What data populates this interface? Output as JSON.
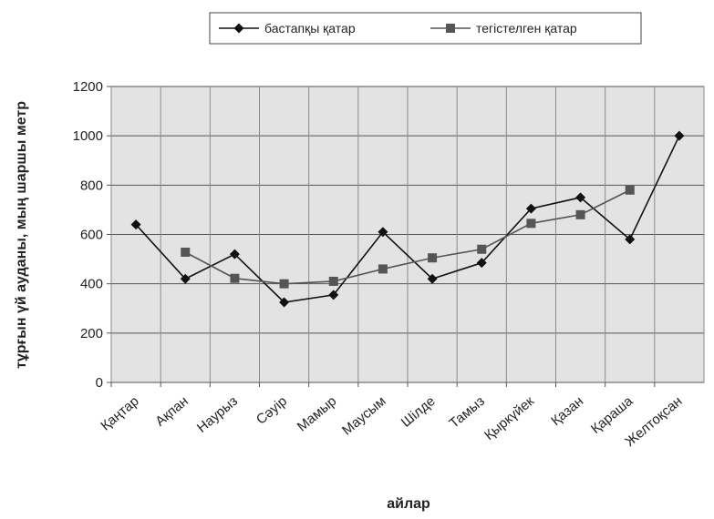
{
  "chart_data": {
    "type": "line",
    "categories": [
      "Қаңтар",
      "Ақпан",
      "Наурыз",
      "Сәуір",
      "Мамыр",
      "Маусым",
      "Шілде",
      "Тамыз",
      "Қыркүйек",
      "Қазан",
      "Қараша",
      "Желтоқсан"
    ],
    "series": [
      {
        "name": "бастапқы қатар",
        "values": [
          640,
          420,
          520,
          325,
          355,
          610,
          420,
          485,
          705,
          750,
          580,
          1000
        ],
        "marker": "diamond",
        "color": "#111111"
      },
      {
        "name": "тегістелген қатар",
        "values": [
          null,
          528,
          422,
          400,
          410,
          460,
          505,
          540,
          645,
          680,
          780,
          null
        ],
        "marker": "square",
        "color": "#555555"
      }
    ],
    "xlabel": "айлар",
    "ylabel": "тұрғын үй ауданы, мың шаршы метр",
    "ylim": [
      0,
      1200
    ],
    "yticks": [
      0,
      200,
      400,
      600,
      800,
      1000,
      1200
    ],
    "grid": true,
    "legend_position": "top"
  }
}
